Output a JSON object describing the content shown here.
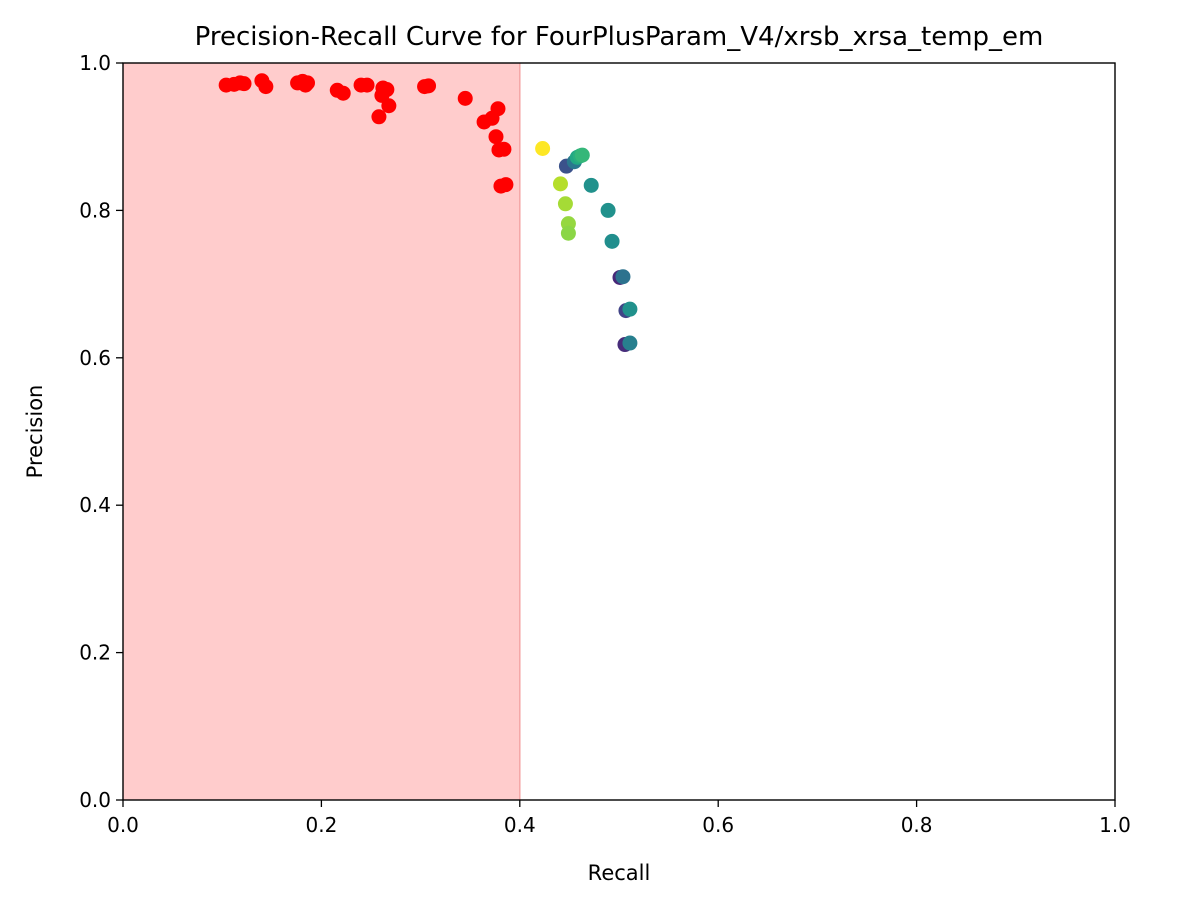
{
  "chart_data": {
    "type": "scatter",
    "title": "Precision-Recall Curve for FourPlusParam_V4/xrsb_xrsa_temp_em",
    "xlabel": "Recall",
    "ylabel": "Precision",
    "xlim": [
      0.0,
      1.0
    ],
    "ylim": [
      0.0,
      1.0
    ],
    "x_ticks": [
      0.0,
      0.2,
      0.4,
      0.6,
      0.8,
      1.0
    ],
    "y_ticks": [
      0.0,
      0.2,
      0.4,
      0.6,
      0.8,
      1.0
    ],
    "x_tick_labels": [
      "0.0",
      "0.2",
      "0.4",
      "0.6",
      "0.8",
      "1.0"
    ],
    "y_tick_labels": [
      "0.0",
      "0.2",
      "0.4",
      "0.6",
      "0.8",
      "1.0"
    ],
    "grid": false,
    "shaded_region": {
      "x_range": [
        0.0,
        0.4
      ],
      "color": "#ffcccc"
    },
    "shaded_edge_color": "#f4a6a6",
    "points": [
      {
        "x": 0.104,
        "y": 0.97,
        "color": "#ff0000"
      },
      {
        "x": 0.112,
        "y": 0.971,
        "color": "#ff0000"
      },
      {
        "x": 0.118,
        "y": 0.973,
        "color": "#ff0000"
      },
      {
        "x": 0.122,
        "y": 0.972,
        "color": "#ff0000"
      },
      {
        "x": 0.14,
        "y": 0.976,
        "color": "#ff0000"
      },
      {
        "x": 0.144,
        "y": 0.968,
        "color": "#ff0000"
      },
      {
        "x": 0.176,
        "y": 0.973,
        "color": "#ff0000"
      },
      {
        "x": 0.181,
        "y": 0.975,
        "color": "#ff0000"
      },
      {
        "x": 0.184,
        "y": 0.97,
        "color": "#ff0000"
      },
      {
        "x": 0.186,
        "y": 0.973,
        "color": "#ff0000"
      },
      {
        "x": 0.216,
        "y": 0.963,
        "color": "#ff0000"
      },
      {
        "x": 0.222,
        "y": 0.959,
        "color": "#ff0000"
      },
      {
        "x": 0.24,
        "y": 0.97,
        "color": "#ff0000"
      },
      {
        "x": 0.246,
        "y": 0.97,
        "color": "#ff0000"
      },
      {
        "x": 0.258,
        "y": 0.927,
        "color": "#ff0000"
      },
      {
        "x": 0.261,
        "y": 0.956,
        "color": "#ff0000"
      },
      {
        "x": 0.262,
        "y": 0.966,
        "color": "#ff0000"
      },
      {
        "x": 0.266,
        "y": 0.964,
        "color": "#ff0000"
      },
      {
        "x": 0.268,
        "y": 0.942,
        "color": "#ff0000"
      },
      {
        "x": 0.304,
        "y": 0.968,
        "color": "#ff0000"
      },
      {
        "x": 0.308,
        "y": 0.969,
        "color": "#ff0000"
      },
      {
        "x": 0.345,
        "y": 0.952,
        "color": "#ff0000"
      },
      {
        "x": 0.364,
        "y": 0.92,
        "color": "#ff0000"
      },
      {
        "x": 0.372,
        "y": 0.925,
        "color": "#ff0000"
      },
      {
        "x": 0.376,
        "y": 0.9,
        "color": "#ff0000"
      },
      {
        "x": 0.378,
        "y": 0.938,
        "color": "#ff0000"
      },
      {
        "x": 0.379,
        "y": 0.882,
        "color": "#ff0000"
      },
      {
        "x": 0.381,
        "y": 0.833,
        "color": "#ff0000"
      },
      {
        "x": 0.384,
        "y": 0.883,
        "color": "#ff0000"
      },
      {
        "x": 0.386,
        "y": 0.835,
        "color": "#ff0000"
      },
      {
        "x": 0.423,
        "y": 0.884,
        "color": "#fde725"
      },
      {
        "x": 0.441,
        "y": 0.836,
        "color": "#b5de2b"
      },
      {
        "x": 0.446,
        "y": 0.809,
        "color": "#a5db36"
      },
      {
        "x": 0.447,
        "y": 0.86,
        "color": "#3b528b"
      },
      {
        "x": 0.449,
        "y": 0.782,
        "color": "#95d840"
      },
      {
        "x": 0.449,
        "y": 0.769,
        "color": "#8bd646"
      },
      {
        "x": 0.455,
        "y": 0.866,
        "color": "#2a788e"
      },
      {
        "x": 0.458,
        "y": 0.872,
        "color": "#22a884"
      },
      {
        "x": 0.461,
        "y": 0.874,
        "color": "#29af7f"
      },
      {
        "x": 0.463,
        "y": 0.875,
        "color": "#35b779"
      },
      {
        "x": 0.472,
        "y": 0.834,
        "color": "#21918c"
      },
      {
        "x": 0.489,
        "y": 0.8,
        "color": "#21918c"
      },
      {
        "x": 0.493,
        "y": 0.758,
        "color": "#218e8d"
      },
      {
        "x": 0.501,
        "y": 0.709,
        "color": "#482878"
      },
      {
        "x": 0.504,
        "y": 0.71,
        "color": "#2c728e"
      },
      {
        "x": 0.506,
        "y": 0.618,
        "color": "#472c7a"
      },
      {
        "x": 0.507,
        "y": 0.664,
        "color": "#414487"
      },
      {
        "x": 0.511,
        "y": 0.666,
        "color": "#21918c"
      },
      {
        "x": 0.511,
        "y": 0.62,
        "color": "#277f8e"
      }
    ]
  }
}
